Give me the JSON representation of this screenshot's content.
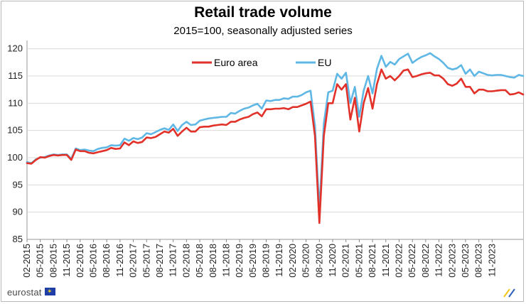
{
  "brand": {
    "name": "eurostat"
  },
  "chart_data": {
    "type": "line",
    "title": "Retail trade volume",
    "subtitle": "2015=100, seasonally adjusted series",
    "ylim": [
      85,
      121
    ],
    "yticks": [
      85,
      90,
      95,
      100,
      105,
      110,
      115,
      120
    ],
    "xtick_labels": [
      "02-2015",
      "05-2015",
      "08-2015",
      "11-2015",
      "02-2016",
      "05-2016",
      "08-2016",
      "11-2016",
      "02-2017",
      "05-2017",
      "08-2017",
      "11-2017",
      "02-2018",
      "05-2018",
      "08-2018",
      "11-2018",
      "02-2019",
      "05-2019",
      "08-2019",
      "11-2019",
      "02-2020",
      "05-2020",
      "08-2020",
      "11-2020",
      "02-2021",
      "05-2021",
      "08-2021",
      "11-2021",
      "02-2022",
      "05-2022",
      "08-2022",
      "11-2022",
      "02-2023",
      "05-2023",
      "08-2023",
      "11-2023"
    ],
    "x_start": "02-2015",
    "grid": true,
    "legend_position": "top",
    "series": [
      {
        "name": "Euro area",
        "color": "#e23129",
        "values": [
          99.0,
          98.9,
          99.6,
          100.1,
          100.0,
          100.3,
          100.5,
          100.4,
          100.5,
          100.5,
          99.6,
          101.5,
          101.2,
          101.2,
          100.9,
          100.8,
          101.0,
          101.2,
          101.4,
          101.8,
          101.6,
          101.7,
          102.8,
          102.3,
          103.0,
          102.7,
          102.9,
          103.7,
          103.6,
          103.8,
          104.3,
          104.8,
          104.6,
          105.3,
          104.0,
          104.8,
          105.5,
          104.8,
          104.8,
          105.6,
          105.7,
          105.7,
          105.9,
          106.0,
          106.1,
          106.0,
          106.6,
          106.6,
          107.0,
          107.3,
          107.5,
          108.0,
          108.3,
          107.6,
          108.9,
          108.9,
          109.0,
          109.0,
          109.1,
          108.9,
          109.3,
          109.3,
          109.6,
          109.9,
          110.3,
          104.0,
          88.0,
          104.0,
          110.0,
          110.0,
          113.5,
          112.5,
          113.5,
          107.0,
          111.0,
          104.8,
          110.0,
          112.8,
          109.0,
          113.5,
          116.2,
          114.5,
          115.0,
          114.2,
          115.0,
          116.0,
          116.2,
          114.8,
          115.0,
          115.3,
          115.5,
          115.6,
          115.1,
          115.1,
          114.5,
          113.5,
          113.2,
          113.6,
          114.5,
          113.0,
          113.0,
          111.8,
          112.5,
          112.5,
          112.2,
          112.2,
          112.3,
          112.4,
          112.4,
          111.6,
          111.7,
          112.0,
          111.6
        ]
      },
      {
        "name": "EU",
        "color": "#5fb7e5",
        "values": [
          99.2,
          99.0,
          99.7,
          100.0,
          100.1,
          100.4,
          100.6,
          100.5,
          100.6,
          100.6,
          99.8,
          101.7,
          101.4,
          101.5,
          101.3,
          101.2,
          101.6,
          101.8,
          101.9,
          102.3,
          102.2,
          102.3,
          103.5,
          103.1,
          103.6,
          103.4,
          103.7,
          104.5,
          104.3,
          104.7,
          105.1,
          105.4,
          105.1,
          106.1,
          104.9,
          106.0,
          106.6,
          106.0,
          106.1,
          106.8,
          107.0,
          107.2,
          107.3,
          107.4,
          107.5,
          107.5,
          108.2,
          108.1,
          108.6,
          109.0,
          109.2,
          109.6,
          109.9,
          109.0,
          110.5,
          110.4,
          110.6,
          110.6,
          110.9,
          110.8,
          111.2,
          111.2,
          111.5,
          112.0,
          112.3,
          105.8,
          90.3,
          106.3,
          112.0,
          112.3,
          115.4,
          114.5,
          115.6,
          110.0,
          113.0,
          107.5,
          112.3,
          115.0,
          111.8,
          116.3,
          118.7,
          116.7,
          117.6,
          117.1,
          118.1,
          118.6,
          119.1,
          117.4,
          118.0,
          118.5,
          118.8,
          119.2,
          118.6,
          118.1,
          117.4,
          116.5,
          116.2,
          116.4,
          117.0,
          115.4,
          116.2,
          115.0,
          115.8,
          115.5,
          115.2,
          115.1,
          115.2,
          115.2,
          115.0,
          114.8,
          114.7,
          115.2,
          115.0
        ]
      }
    ]
  }
}
